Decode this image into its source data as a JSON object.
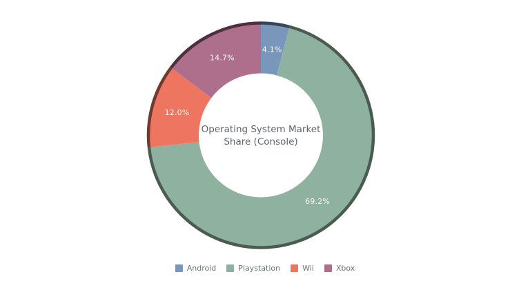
{
  "chart_data": {
    "type": "pie",
    "subtype": "donut",
    "title": "Operating System Market Share (Console)",
    "title_lines": [
      "Operating System Market",
      "Share (Console)"
    ],
    "title_color": "#5d6570",
    "value_label_color": "#f5f6f5",
    "background_color": "#ffffff",
    "start_angle_deg": 0,
    "direction": "clockwise",
    "legend_position": "bottom",
    "slices": [
      {
        "name": "Android",
        "value": 4.1,
        "label": "4.1%",
        "color": "#7897ba",
        "rim_color": "#374659"
      },
      {
        "name": "Playstation",
        "value": 69.2,
        "label": "69.2%",
        "color": "#8fb2a0",
        "rim_color": "#4c5b52"
      },
      {
        "name": "Wii",
        "value": 12.0,
        "label": "12.0%",
        "color": "#ee7661",
        "rim_color": "#723a2e"
      },
      {
        "name": "Xbox",
        "value": 14.7,
        "label": "14.7%",
        "color": "#ae6f8d",
        "rim_color": "#4f2e3d"
      }
    ]
  }
}
